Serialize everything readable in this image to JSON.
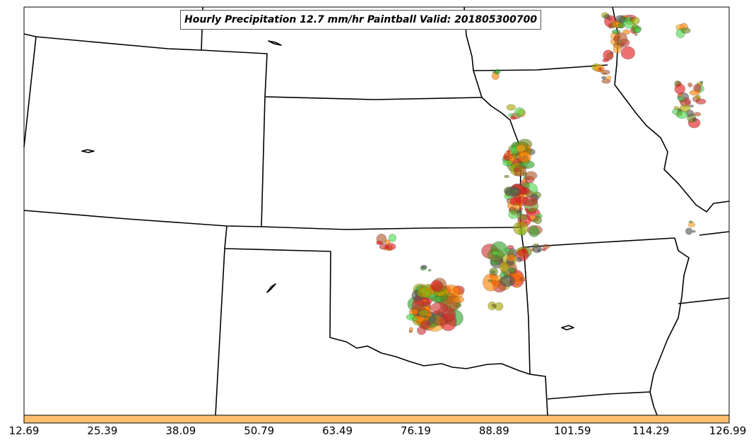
{
  "title": "Hourly Precipitation 12.7 mm/hr Paintball Valid: 201805300700",
  "colorbar": {
    "color": "#fdbf6f",
    "ticks": [
      "12.69",
      "25.39",
      "38.09",
      "50.79",
      "63.49",
      "76.19",
      "88.89",
      "101.59",
      "114.29",
      "126.99"
    ]
  },
  "member_colors": [
    "#e31a1c",
    "#ff7f00",
    "#33a02c",
    "#b15928",
    "#6a8a1f",
    "#555555",
    "#4dd94d",
    "#a6a600",
    "#ff9f1a",
    "#cc3333"
  ],
  "icons": [
    "state-boundary-lines",
    "paintball-blobs"
  ]
}
